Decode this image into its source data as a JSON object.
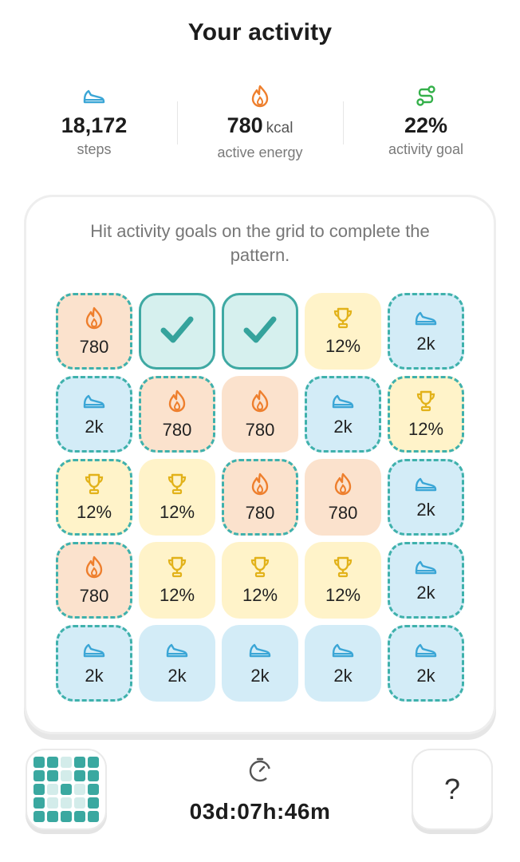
{
  "header": {
    "title": "Your activity"
  },
  "stats": [
    {
      "icon": "sneaker-icon",
      "value": "18,172",
      "unit": "",
      "label": "steps",
      "color": "#3ba6d6"
    },
    {
      "icon": "flame-icon",
      "value": "780",
      "unit": "kcal",
      "label": "active energy",
      "color": "#ee7f2d"
    },
    {
      "icon": "route-icon",
      "value": "22%",
      "unit": "",
      "label": "activity goal",
      "color": "#34b04a"
    }
  ],
  "card": {
    "instructions": "Hit activity goals on the grid to complete the pattern."
  },
  "grid": [
    [
      {
        "type": "fire",
        "label": "780",
        "dashed": true
      },
      {
        "type": "checked",
        "label": "",
        "dashed": false
      },
      {
        "type": "checked",
        "label": "",
        "dashed": false
      },
      {
        "type": "trophy",
        "label": "12%",
        "dashed": false
      },
      {
        "type": "shoe",
        "label": "2k",
        "dashed": true
      }
    ],
    [
      {
        "type": "shoe",
        "label": "2k",
        "dashed": true
      },
      {
        "type": "fire",
        "label": "780",
        "dashed": true
      },
      {
        "type": "fire",
        "label": "780",
        "dashed": false
      },
      {
        "type": "shoe",
        "label": "2k",
        "dashed": true
      },
      {
        "type": "trophy",
        "label": "12%",
        "dashed": true
      }
    ],
    [
      {
        "type": "trophy",
        "label": "12%",
        "dashed": true
      },
      {
        "type": "trophy",
        "label": "12%",
        "dashed": false
      },
      {
        "type": "fire",
        "label": "780",
        "dashed": true
      },
      {
        "type": "fire",
        "label": "780",
        "dashed": false
      },
      {
        "type": "shoe",
        "label": "2k",
        "dashed": true
      }
    ],
    [
      {
        "type": "fire",
        "label": "780",
        "dashed": true
      },
      {
        "type": "trophy",
        "label": "12%",
        "dashed": false
      },
      {
        "type": "trophy",
        "label": "12%",
        "dashed": false
      },
      {
        "type": "trophy",
        "label": "12%",
        "dashed": false
      },
      {
        "type": "shoe",
        "label": "2k",
        "dashed": true
      }
    ],
    [
      {
        "type": "shoe",
        "label": "2k",
        "dashed": true
      },
      {
        "type": "shoe",
        "label": "2k",
        "dashed": false
      },
      {
        "type": "shoe",
        "label": "2k",
        "dashed": false
      },
      {
        "type": "shoe",
        "label": "2k",
        "dashed": false
      },
      {
        "type": "shoe",
        "label": "2k",
        "dashed": true
      }
    ]
  ],
  "pattern_preview": [
    [
      1,
      1,
      0,
      1,
      1
    ],
    [
      1,
      1,
      0,
      1,
      1
    ],
    [
      1,
      0,
      1,
      0,
      1
    ],
    [
      1,
      0,
      0,
      0,
      1
    ],
    [
      1,
      1,
      1,
      1,
      1
    ]
  ],
  "timer": {
    "icon": "stopwatch-icon",
    "text": "03d:07h:46m"
  },
  "help": {
    "label": "?"
  },
  "colors": {
    "accent": "#3fa9a3",
    "flame": "#ee7f2d",
    "trophy": "#e2b21a",
    "shoe": "#3ba6d6",
    "route": "#34b04a"
  }
}
